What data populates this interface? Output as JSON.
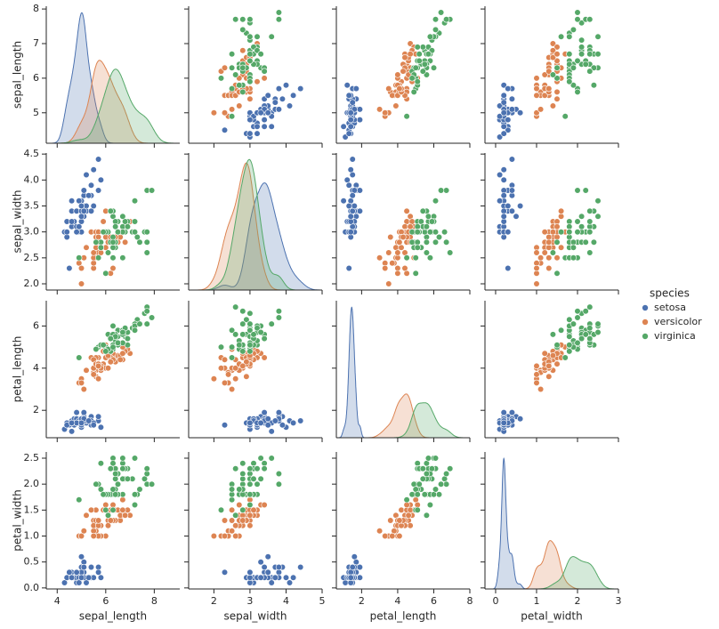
{
  "chart_data": {
    "type": "pairplot",
    "variables": [
      "sepal_length",
      "sepal_width",
      "petal_length",
      "petal_width"
    ],
    "legend_title": "species",
    "legend": "right",
    "axes": [
      {
        "xlim": [
          3.55,
          9.05
        ],
        "xticks": [
          4,
          6,
          8
        ],
        "ylim": [
          4.12,
          8.08
        ],
        "yticks": [
          5,
          6,
          7,
          8
        ]
      },
      {
        "xlim": [
          1.3,
          5.0
        ],
        "xticks": [
          2,
          3,
          4,
          5
        ],
        "ylim": [
          1.88,
          4.52
        ],
        "yticks": [
          {
            "value": 2,
            "label": "2.0"
          },
          2.5,
          {
            "value": 3,
            "label": "3.0"
          },
          3.5,
          {
            "value": 4,
            "label": "4.0"
          },
          4.5
        ]
      },
      {
        "xlim": [
          0.6,
          8.0
        ],
        "xticks": [
          2,
          4,
          6,
          8
        ],
        "ylim": [
          0.7,
          7.2
        ],
        "yticks": [
          2,
          4,
          6
        ]
      },
      {
        "xlim": [
          -0.26,
          3.0
        ],
        "xticks": [
          0,
          1,
          2,
          3
        ],
        "ylim": [
          -0.02,
          2.62
        ],
        "yticks": [
          {
            "value": 0,
            "label": "0.0"
          },
          0.5,
          {
            "value": 1,
            "label": "1.0"
          },
          1.5,
          {
            "value": 2,
            "label": "2.0"
          },
          2.5
        ]
      }
    ],
    "series": [
      {
        "name": "setosa",
        "color": "#4c72b0",
        "values": [
          [
            5.1,
            4.9,
            4.7,
            4.6,
            5.0,
            5.4,
            4.6,
            5.0,
            4.4,
            4.9,
            5.4,
            4.8,
            4.8,
            4.3,
            5.8,
            5.7,
            5.4,
            5.1,
            5.7,
            5.1,
            5.4,
            5.1,
            4.6,
            5.1,
            4.8,
            5.0,
            5.0,
            5.2,
            5.2,
            4.7,
            4.8,
            5.4,
            5.2,
            5.5,
            4.9,
            5.0,
            5.5,
            4.9,
            4.4,
            5.1,
            5.0,
            4.5,
            4.4,
            5.0,
            5.1,
            4.8,
            5.1,
            4.6,
            5.3,
            5.0
          ],
          [
            3.5,
            3.0,
            3.2,
            3.1,
            3.6,
            3.9,
            3.4,
            3.4,
            2.9,
            3.1,
            3.7,
            3.4,
            3.0,
            3.0,
            4.0,
            4.4,
            3.9,
            3.5,
            3.8,
            3.8,
            3.4,
            3.7,
            3.6,
            3.3,
            3.4,
            3.0,
            3.4,
            3.5,
            3.4,
            3.2,
            3.1,
            3.4,
            4.1,
            4.2,
            3.1,
            3.2,
            3.5,
            3.6,
            3.0,
            3.4,
            3.5,
            2.3,
            3.2,
            3.5,
            3.8,
            3.0,
            3.8,
            3.2,
            3.7,
            3.3
          ],
          [
            1.4,
            1.4,
            1.3,
            1.5,
            1.4,
            1.7,
            1.4,
            1.5,
            1.4,
            1.5,
            1.5,
            1.6,
            1.4,
            1.1,
            1.2,
            1.5,
            1.3,
            1.4,
            1.7,
            1.5,
            1.7,
            1.5,
            1.0,
            1.7,
            1.9,
            1.6,
            1.6,
            1.5,
            1.4,
            1.6,
            1.6,
            1.5,
            1.5,
            1.4,
            1.5,
            1.2,
            1.3,
            1.4,
            1.3,
            1.5,
            1.3,
            1.3,
            1.3,
            1.6,
            1.9,
            1.4,
            1.6,
            1.4,
            1.5,
            1.4
          ],
          [
            0.2,
            0.2,
            0.2,
            0.2,
            0.2,
            0.4,
            0.3,
            0.2,
            0.2,
            0.1,
            0.2,
            0.2,
            0.1,
            0.1,
            0.2,
            0.4,
            0.4,
            0.3,
            0.3,
            0.3,
            0.2,
            0.4,
            0.2,
            0.5,
            0.2,
            0.2,
            0.4,
            0.2,
            0.2,
            0.2,
            0.2,
            0.4,
            0.1,
            0.2,
            0.2,
            0.2,
            0.2,
            0.1,
            0.2,
            0.2,
            0.3,
            0.3,
            0.2,
            0.6,
            0.4,
            0.3,
            0.2,
            0.2,
            0.2,
            0.2
          ]
        ]
      },
      {
        "name": "versicolor",
        "color": "#dd8452",
        "values": [
          [
            7.0,
            6.4,
            6.9,
            5.5,
            6.5,
            5.7,
            6.3,
            4.9,
            6.6,
            5.2,
            5.0,
            5.9,
            6.0,
            6.1,
            5.6,
            6.7,
            5.6,
            5.8,
            6.2,
            5.6,
            5.9,
            6.1,
            6.3,
            6.1,
            6.4,
            6.6,
            6.8,
            6.7,
            6.0,
            5.7,
            5.5,
            5.5,
            5.8,
            6.0,
            5.4,
            6.0,
            6.7,
            6.3,
            5.6,
            5.5,
            5.5,
            6.1,
            5.8,
            5.0,
            5.6,
            5.7,
            5.7,
            6.2,
            5.1,
            5.7
          ],
          [
            3.2,
            3.2,
            3.1,
            2.3,
            2.8,
            2.8,
            3.3,
            2.4,
            2.9,
            2.7,
            2.0,
            3.0,
            2.2,
            2.9,
            2.9,
            3.1,
            3.0,
            2.7,
            2.2,
            2.5,
            3.2,
            2.8,
            2.5,
            2.8,
            2.9,
            3.0,
            2.8,
            3.0,
            2.9,
            2.6,
            2.4,
            2.4,
            2.7,
            2.7,
            3.0,
            3.4,
            3.1,
            2.3,
            3.0,
            2.5,
            2.6,
            3.0,
            2.6,
            2.3,
            2.7,
            3.0,
            2.9,
            2.9,
            2.5,
            2.8
          ],
          [
            4.7,
            4.5,
            4.9,
            4.0,
            4.6,
            4.5,
            4.7,
            3.3,
            4.6,
            3.9,
            3.5,
            4.2,
            4.0,
            4.7,
            3.6,
            4.4,
            4.5,
            4.1,
            4.5,
            3.9,
            4.8,
            4.0,
            4.9,
            4.7,
            4.3,
            4.4,
            4.8,
            5.0,
            4.5,
            3.5,
            3.8,
            3.7,
            3.9,
            5.1,
            4.5,
            4.5,
            4.7,
            4.4,
            4.1,
            4.0,
            4.4,
            4.6,
            4.0,
            3.3,
            4.2,
            4.2,
            4.2,
            4.3,
            3.0,
            4.1
          ],
          [
            1.4,
            1.5,
            1.5,
            1.3,
            1.5,
            1.3,
            1.6,
            1.0,
            1.3,
            1.4,
            1.0,
            1.5,
            1.0,
            1.4,
            1.3,
            1.4,
            1.5,
            1.0,
            1.5,
            1.1,
            1.8,
            1.3,
            1.5,
            1.2,
            1.3,
            1.4,
            1.4,
            1.7,
            1.5,
            1.0,
            1.1,
            1.0,
            1.2,
            1.6,
            1.5,
            1.6,
            1.5,
            1.3,
            1.3,
            1.3,
            1.2,
            1.4,
            1.2,
            1.0,
            1.3,
            1.2,
            1.3,
            1.3,
            1.1,
            1.3
          ]
        ]
      },
      {
        "name": "virginica",
        "color": "#55a868",
        "values": [
          [
            6.3,
            5.8,
            7.1,
            6.3,
            6.5,
            7.6,
            4.9,
            7.3,
            6.7,
            7.2,
            6.5,
            6.4,
            6.8,
            5.7,
            5.8,
            6.4,
            6.5,
            7.7,
            7.7,
            6.0,
            6.9,
            5.6,
            7.7,
            6.3,
            6.7,
            7.2,
            6.2,
            6.1,
            6.4,
            7.2,
            7.4,
            7.9,
            6.4,
            6.3,
            6.1,
            7.7,
            6.3,
            6.4,
            6.0,
            6.9,
            6.7,
            6.9,
            5.8,
            6.8,
            6.7,
            6.7,
            6.3,
            6.5,
            6.2,
            5.9
          ],
          [
            3.3,
            2.7,
            3.0,
            2.9,
            3.0,
            3.0,
            2.5,
            2.9,
            2.5,
            3.6,
            3.2,
            2.7,
            3.0,
            2.5,
            2.8,
            3.2,
            3.0,
            3.8,
            2.6,
            2.2,
            3.2,
            2.8,
            2.8,
            2.7,
            3.3,
            3.2,
            2.8,
            3.0,
            2.8,
            3.0,
            2.8,
            3.8,
            2.8,
            2.8,
            2.6,
            3.0,
            3.4,
            3.1,
            3.0,
            3.1,
            3.1,
            3.1,
            2.7,
            3.2,
            3.3,
            3.0,
            2.5,
            3.0,
            3.4,
            3.0
          ],
          [
            6.0,
            5.1,
            5.9,
            5.6,
            5.8,
            6.6,
            4.5,
            6.3,
            5.8,
            6.1,
            5.1,
            5.3,
            5.5,
            5.0,
            5.1,
            5.3,
            5.5,
            6.7,
            6.9,
            5.0,
            5.7,
            4.9,
            6.7,
            4.9,
            5.7,
            6.0,
            4.8,
            4.9,
            5.6,
            5.8,
            6.1,
            6.4,
            5.6,
            5.1,
            5.6,
            6.1,
            5.6,
            5.5,
            4.8,
            5.4,
            5.6,
            5.1,
            5.1,
            5.9,
            5.7,
            5.2,
            5.0,
            5.2,
            5.4,
            5.1
          ],
          [
            2.5,
            1.9,
            2.1,
            1.8,
            2.2,
            2.1,
            1.7,
            1.8,
            1.8,
            2.5,
            2.0,
            1.9,
            2.1,
            2.0,
            2.4,
            2.3,
            1.8,
            2.2,
            2.3,
            1.5,
            2.3,
            2.0,
            2.0,
            1.8,
            2.1,
            1.8,
            1.8,
            1.8,
            2.1,
            1.6,
            1.9,
            2.0,
            2.2,
            1.5,
            1.4,
            2.3,
            2.4,
            1.8,
            1.8,
            2.1,
            2.4,
            2.3,
            1.9,
            2.3,
            2.5,
            2.3,
            1.9,
            2.0,
            2.3,
            1.8
          ]
        ]
      }
    ]
  }
}
